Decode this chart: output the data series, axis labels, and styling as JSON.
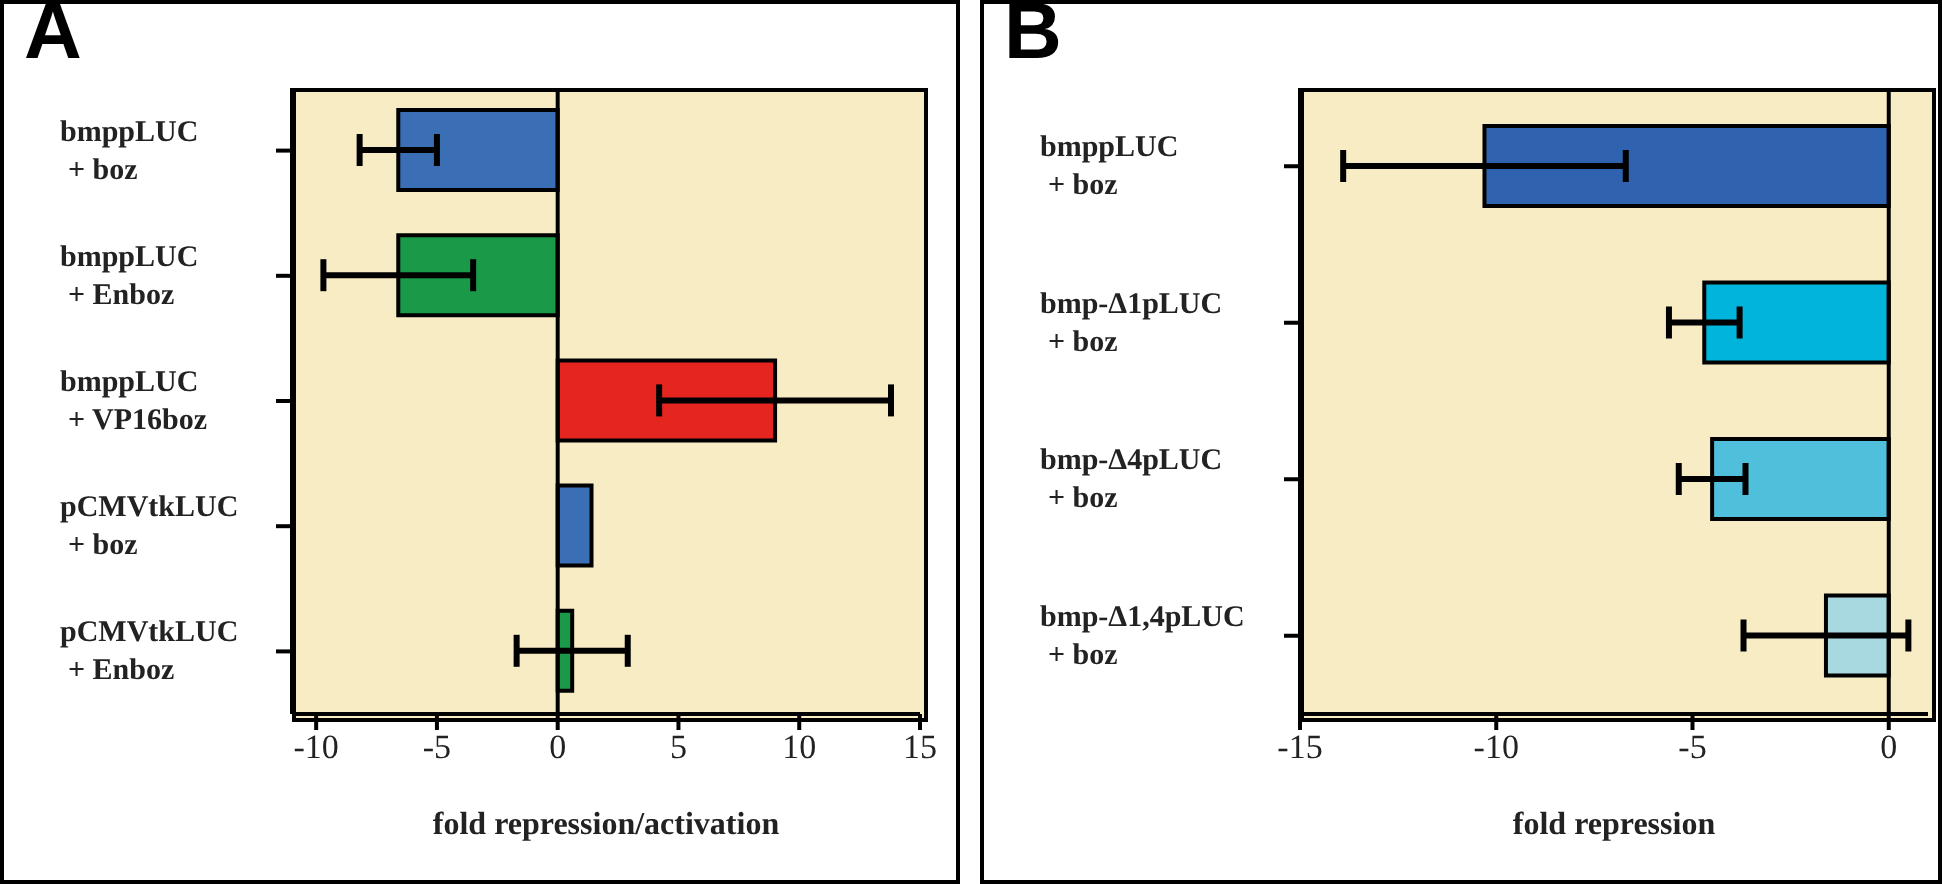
{
  "chart_data": [
    {
      "type": "bar",
      "title": "A",
      "orientation": "horizontal",
      "xlabel": "fold repression/activation",
      "categories": [
        "bmppLUC\n+ boz",
        "bmppLUC\n+ Enboz",
        "bmppLUC\n+ VP16boz",
        "pCMVtkLUC\n+ boz",
        "pCMVtkLUC\n+ Enboz"
      ],
      "values": [
        -6.6,
        -6.6,
        9,
        1.4,
        0.6
      ],
      "errors": [
        1.6,
        3.1,
        4.8,
        null,
        2.3
      ],
      "colors": [
        "#3a6fb5",
        "#1a9a48",
        "#e42520",
        "#3a6fb5",
        "#1a9a48"
      ],
      "xlim": [
        -11,
        15
      ],
      "xticks": [
        -10,
        -5,
        0,
        5,
        10,
        15
      ],
      "ref_lines": [
        {
          "axis": "x",
          "value": 0,
          "color": "#000000"
        }
      ],
      "grid": false,
      "legend": false
    },
    {
      "type": "bar",
      "title": "B",
      "orientation": "horizontal",
      "xlabel": "fold repression",
      "categories": [
        "bmppLUC\n+ boz",
        "bmp-Δ1pLUC\n+ boz",
        "bmp-Δ4pLUC\n+ boz",
        "bmp-Δ1,4pLUC\n+ boz"
      ],
      "values": [
        -10.3,
        -4.7,
        -4.5,
        -1.6
      ],
      "errors": [
        3.6,
        0.9,
        0.85,
        2.1
      ],
      "colors": [
        "#2f63b0",
        "#00b4dc",
        "#4fbfdc",
        "#a8d8e0"
      ],
      "xlim": [
        -15,
        1
      ],
      "xticks": [
        -15,
        -10,
        -5,
        0
      ],
      "ref_lines": [
        {
          "axis": "x",
          "value": 0,
          "color": "#000000"
        }
      ],
      "grid": false,
      "legend": false
    }
  ]
}
